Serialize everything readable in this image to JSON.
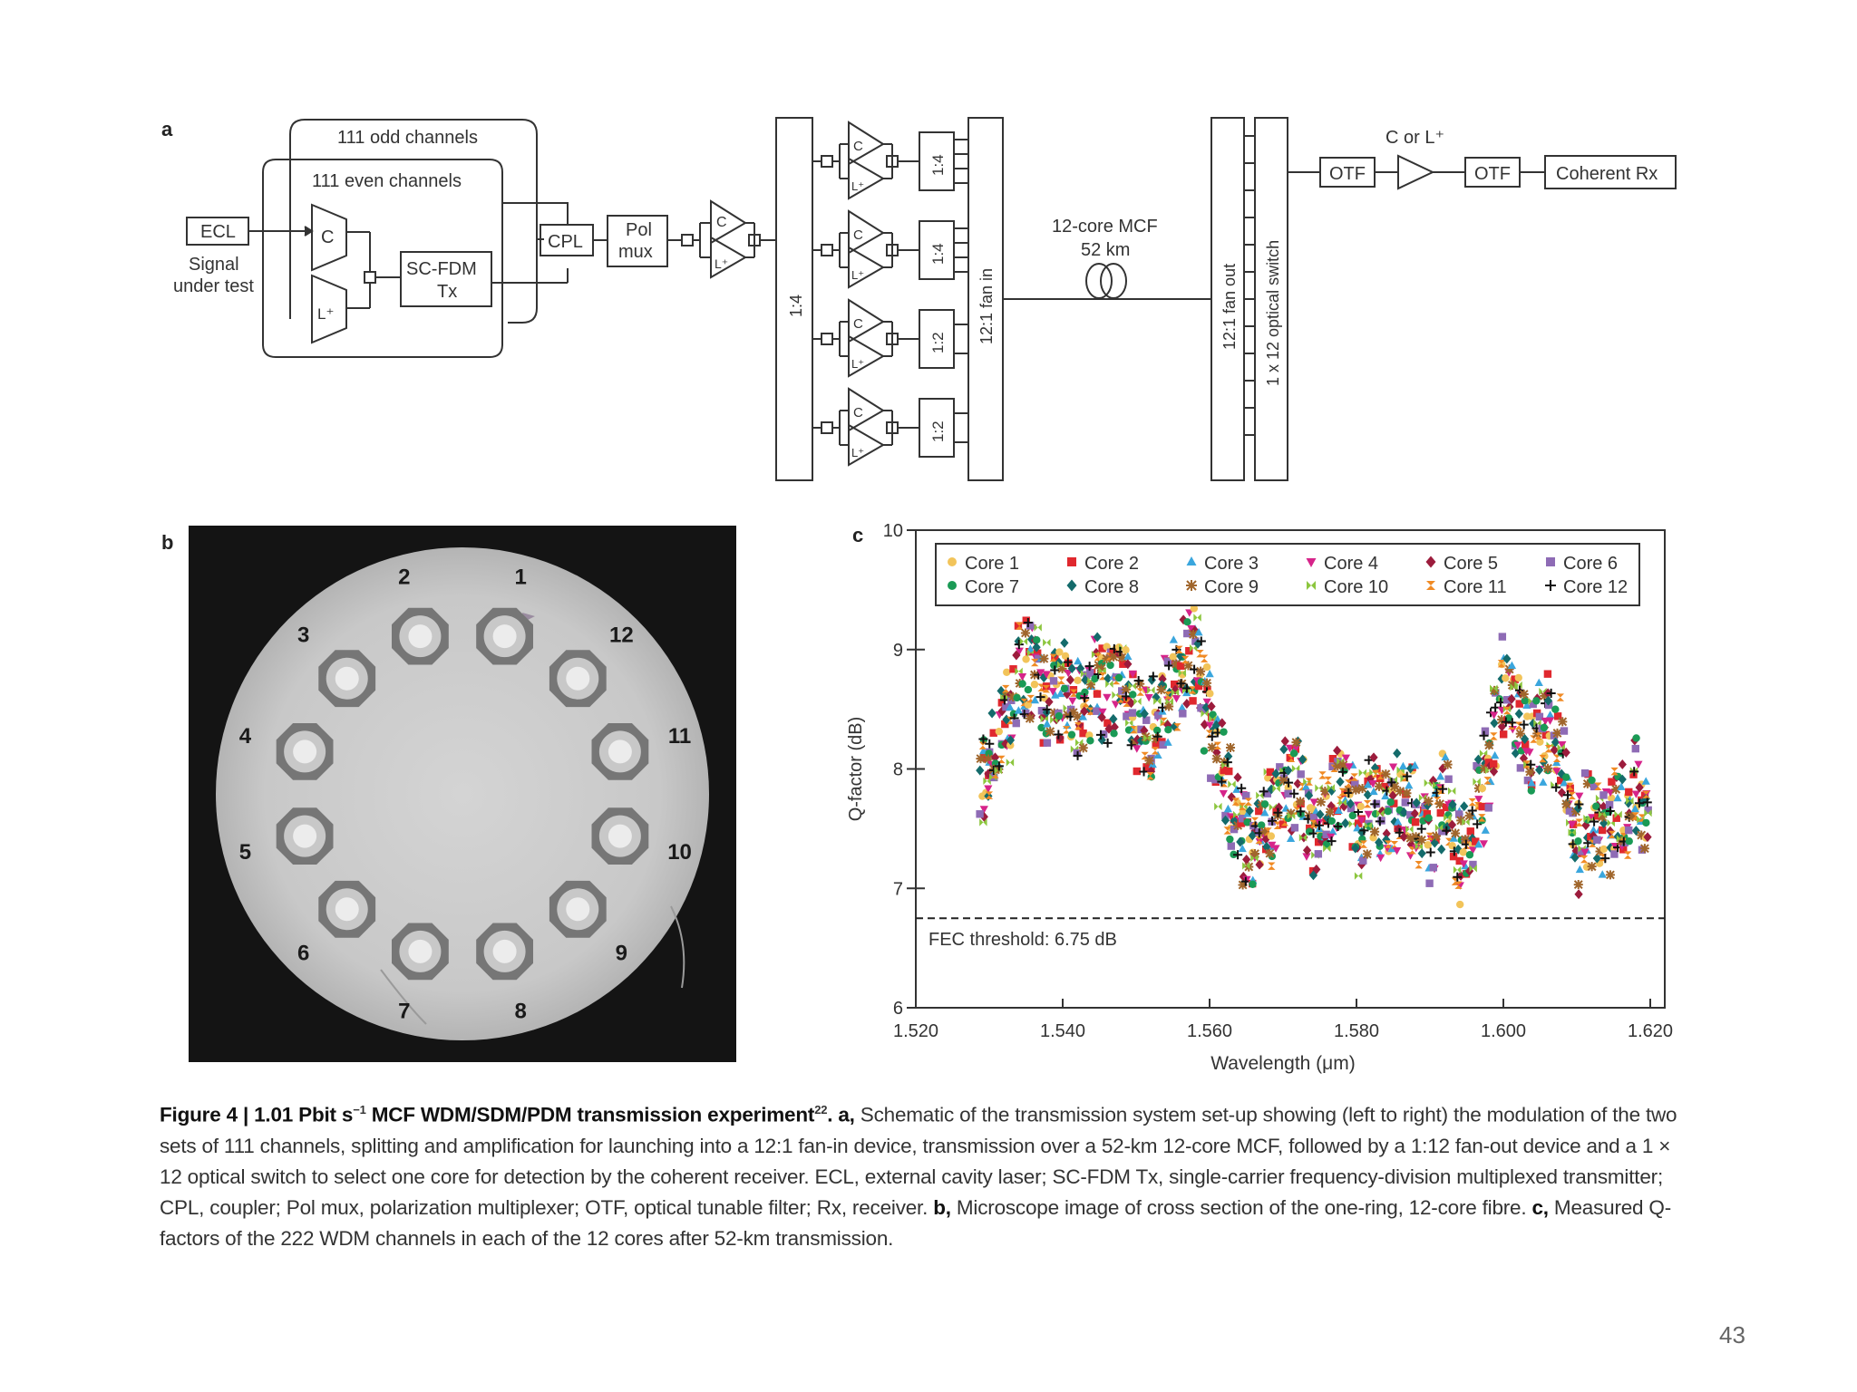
{
  "panel_letters": {
    "a": "a",
    "b": "b",
    "c": "c"
  },
  "schematic": {
    "odd_channels": "111 odd channels",
    "even_channels": "111 even channels",
    "ecl": "ECL",
    "signal_under_test_1": "Signal",
    "signal_under_test_2": "under test",
    "mod_c": "C",
    "mod_l": "L⁺",
    "scfdm_1": "SC-FDM",
    "scfdm_2": "Tx",
    "cpl": "CPL",
    "polmux_1": "Pol",
    "polmux_2": "mux",
    "split_1_4": "1:4",
    "amp_c": "C",
    "amp_l": "L⁺",
    "sub_splits": [
      "1:4",
      "1:4",
      "1:2",
      "1:2"
    ],
    "fan_in": "12:1 fan in",
    "mcf_1": "12-core MCF",
    "mcf_2": "52 km",
    "fan_out": "12:1 fan out",
    "optical_switch": "1 x 12 optical switch",
    "otf_1": "OTF",
    "c_or_l": "C or L⁺",
    "otf_2": "OTF",
    "coherent_rx": "Coherent Rx"
  },
  "micrograph": {
    "core_labels": [
      "1",
      "2",
      "3",
      "4",
      "5",
      "6",
      "7",
      "8",
      "9",
      "10",
      "11",
      "12"
    ]
  },
  "chart_data": {
    "type": "scatter",
    "title": "",
    "xlabel": "Wavelength (μm)",
    "ylabel": "Q-factor (dB)",
    "xlim": [
      1.52,
      1.62
    ],
    "ylim": [
      6,
      10
    ],
    "x_ticks": [
      "1.520",
      "1.540",
      "1.560",
      "1.580",
      "1.600",
      "1.620"
    ],
    "y_ticks": [
      "6",
      "7",
      "8",
      "9",
      "10"
    ],
    "threshold": {
      "value": 6.75,
      "label": "FEC threshold: 6.75 dB"
    },
    "legend_position": "top",
    "series": [
      {
        "name": "Core 1",
        "marker": "circle",
        "color": "#f2c45a"
      },
      {
        "name": "Core 2",
        "marker": "square",
        "color": "#e0282e"
      },
      {
        "name": "Core 3",
        "marker": "triangle-up",
        "color": "#3aa6dd"
      },
      {
        "name": "Core 4",
        "marker": "triangle-down",
        "color": "#d6248a"
      },
      {
        "name": "Core 5",
        "marker": "diamond",
        "color": "#9c1c3c"
      },
      {
        "name": "Core 6",
        "marker": "square",
        "color": "#8e6bb5"
      },
      {
        "name": "Core 7",
        "marker": "circle",
        "color": "#1a9a55"
      },
      {
        "name": "Core 8",
        "marker": "diamond",
        "color": "#146b6b"
      },
      {
        "name": "Core 9",
        "marker": "asterisk",
        "color": "#a0662c"
      },
      {
        "name": "Core 10",
        "marker": "bowtie-h",
        "color": "#8cc63e"
      },
      {
        "name": "Core 11",
        "marker": "bowtie-v",
        "color": "#f08a24"
      },
      {
        "name": "Core 12",
        "marker": "plus",
        "color": "#111111"
      }
    ],
    "trend": [
      [
        1.529,
        7.9
      ],
      [
        1.53,
        8.1
      ],
      [
        1.532,
        8.3
      ],
      [
        1.534,
        8.8
      ],
      [
        1.536,
        8.85
      ],
      [
        1.538,
        8.6
      ],
      [
        1.54,
        8.7
      ],
      [
        1.542,
        8.5
      ],
      [
        1.544,
        8.75
      ],
      [
        1.546,
        8.6
      ],
      [
        1.548,
        8.8
      ],
      [
        1.55,
        8.4
      ],
      [
        1.552,
        8.3
      ],
      [
        1.554,
        8.6
      ],
      [
        1.556,
        8.75
      ],
      [
        1.558,
        8.95
      ],
      [
        1.56,
        8.4
      ],
      [
        1.562,
        7.9
      ],
      [
        1.564,
        7.55
      ],
      [
        1.566,
        7.35
      ],
      [
        1.568,
        7.6
      ],
      [
        1.57,
        7.75
      ],
      [
        1.572,
        7.95
      ],
      [
        1.574,
        7.5
      ],
      [
        1.576,
        7.65
      ],
      [
        1.578,
        7.85
      ],
      [
        1.58,
        7.5
      ],
      [
        1.582,
        7.75
      ],
      [
        1.584,
        7.6
      ],
      [
        1.586,
        7.75
      ],
      [
        1.588,
        7.65
      ],
      [
        1.59,
        7.4
      ],
      [
        1.592,
        7.8
      ],
      [
        1.594,
        7.3
      ],
      [
        1.596,
        7.55
      ],
      [
        1.598,
        8.0
      ],
      [
        1.6,
        8.7
      ],
      [
        1.602,
        8.5
      ],
      [
        1.604,
        8.2
      ],
      [
        1.606,
        8.35
      ],
      [
        1.608,
        8.15
      ],
      [
        1.61,
        7.4
      ],
      [
        1.612,
        7.6
      ],
      [
        1.614,
        7.55
      ],
      [
        1.616,
        7.6
      ],
      [
        1.618,
        7.8
      ],
      [
        1.6195,
        7.75
      ]
    ]
  },
  "caption": {
    "fig_label": "Figure 4 | 1.01 Pbit s",
    "fig_unit_sup": "−1",
    "fig_title_rest": " MCF WDM/SDM/PDM transmission experiment",
    "ref_sup": "22",
    "a_label": ". a,",
    "a_text": " Schematic of the transmission system set-up showing (left to right) the modulation of the two sets of 111 channels, splitting and amplification for launching into a 12:1 fan-in device, transmission over a 52-km 12-core MCF, followed by a 1:12 fan-out device and a 1 × 12 optical switch to select one core for detection by the coherent receiver. ECL, external cavity laser; SC-FDM Tx, single-carrier frequency-division multiplexed transmitter; CPL, coupler; Pol mux, polarization multiplexer; OTF, optical tunable filter; Rx, receiver.",
    "b_label": " b,",
    "b_text": " Microscope image of cross section of the one-ring, 12-core fibre.",
    "c_label": " c,",
    "c_text": " Measured Q-factors of the 222 WDM channels in each of the 12 cores after 52-km transmission."
  },
  "page_number": "43"
}
